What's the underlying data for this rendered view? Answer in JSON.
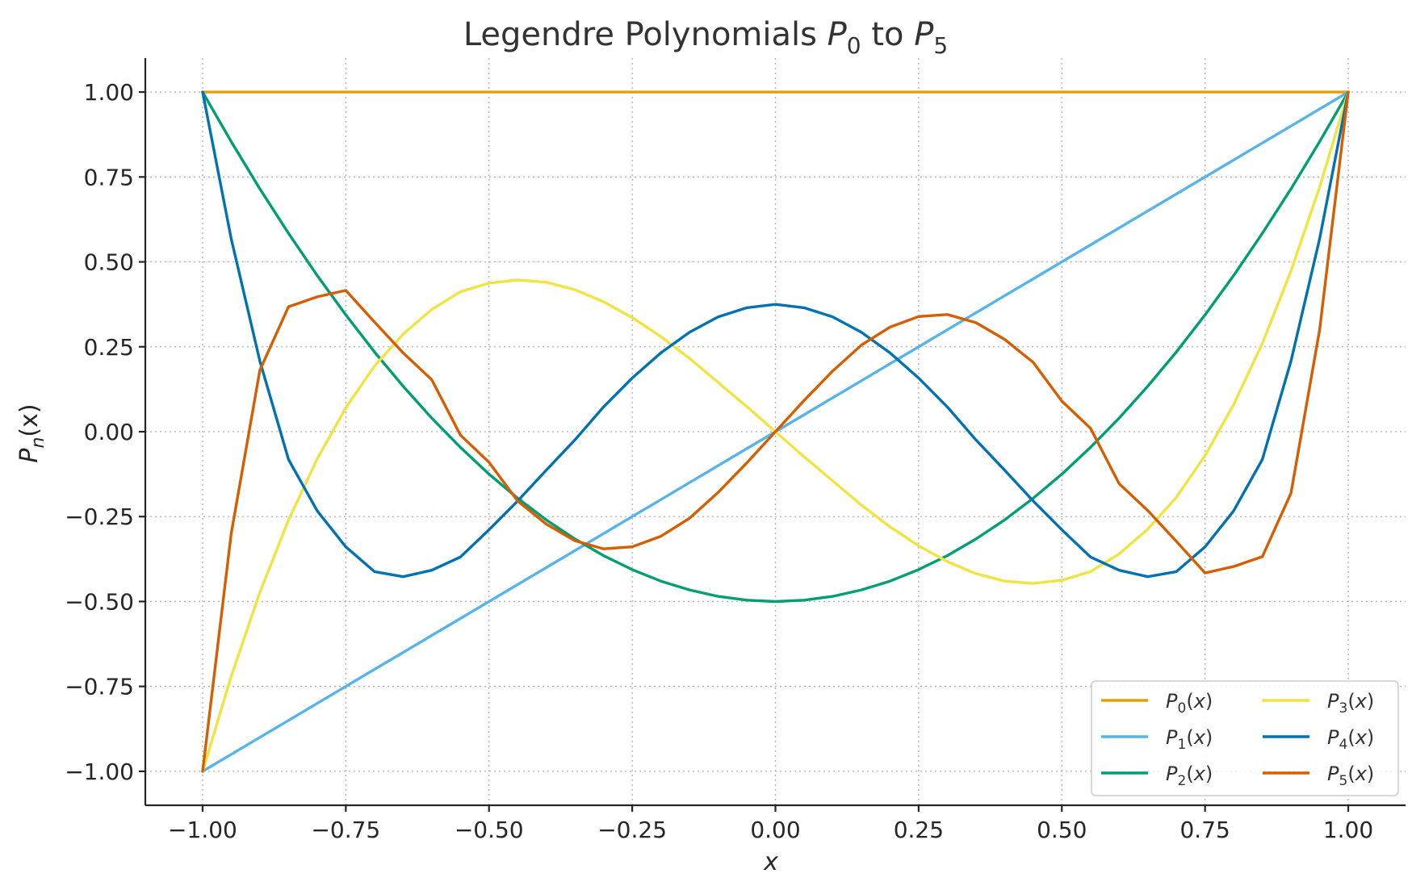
{
  "chart_data": {
    "type": "line",
    "title": "Legendre Polynomials P₀ to P₅",
    "title_parts": {
      "prefix": "Legendre Polynomials ",
      "p": "P",
      "sub0": "0",
      "mid": " to ",
      "sub5": "5"
    },
    "xlabel": "x",
    "ylabel": "Pₙ(x)",
    "xlim": [
      -1.1,
      1.1
    ],
    "ylim": [
      -1.1,
      1.1
    ],
    "x_ticks": [
      -1.0,
      -0.75,
      -0.5,
      -0.25,
      0.0,
      0.25,
      0.5,
      0.75,
      1.0
    ],
    "x_tick_labels": [
      "−1.00",
      "−0.75",
      "−0.50",
      "−0.25",
      "0.00",
      "0.25",
      "0.50",
      "0.75",
      "1.00"
    ],
    "y_ticks": [
      1.0,
      0.75,
      0.5,
      0.25,
      0.0,
      -0.25,
      -0.5,
      -0.75,
      -1.0
    ],
    "y_tick_labels": [
      "1.00",
      "0.75",
      "0.50",
      "0.25",
      "0.00",
      "−0.25",
      "−0.50",
      "−0.75",
      "−1.00"
    ],
    "grid": true,
    "legend_position": "bottom-right",
    "legend_columns": 2,
    "x": [
      -1.0,
      -0.95,
      -0.9,
      -0.85,
      -0.8,
      -0.75,
      -0.7,
      -0.65,
      -0.6,
      -0.55,
      -0.5,
      -0.45,
      -0.4,
      -0.35,
      -0.3,
      -0.25,
      -0.2,
      -0.15,
      -0.1,
      -0.05,
      0.0,
      0.05,
      0.1,
      0.15,
      0.2,
      0.25,
      0.3,
      0.35,
      0.4,
      0.45,
      0.5,
      0.55,
      0.6,
      0.65,
      0.7,
      0.75,
      0.8,
      0.85,
      0.9,
      0.95,
      1.0
    ],
    "series": [
      {
        "name": "P₀(x)",
        "n": "0",
        "color": "#E69F00",
        "values": [
          1,
          1,
          1,
          1,
          1,
          1,
          1,
          1,
          1,
          1,
          1,
          1,
          1,
          1,
          1,
          1,
          1,
          1,
          1,
          1,
          1,
          1,
          1,
          1,
          1,
          1,
          1,
          1,
          1,
          1,
          1,
          1,
          1,
          1,
          1,
          1,
          1,
          1,
          1,
          1,
          1
        ]
      },
      {
        "name": "P₁(x)",
        "n": "1",
        "color": "#56B4E9",
        "values": [
          -1.0,
          -0.95,
          -0.9,
          -0.85,
          -0.8,
          -0.75,
          -0.7,
          -0.65,
          -0.6,
          -0.55,
          -0.5,
          -0.45,
          -0.4,
          -0.35,
          -0.3,
          -0.25,
          -0.2,
          -0.15,
          -0.1,
          -0.05,
          0.0,
          0.05,
          0.1,
          0.15,
          0.2,
          0.25,
          0.3,
          0.35,
          0.4,
          0.45,
          0.5,
          0.55,
          0.6,
          0.65,
          0.7,
          0.75,
          0.8,
          0.85,
          0.9,
          0.95,
          1.0
        ]
      },
      {
        "name": "P₂(x)",
        "n": "2",
        "color": "#009E73",
        "values": [
          1.0,
          0.854,
          0.715,
          0.584,
          0.46,
          0.344,
          0.235,
          0.134,
          0.04,
          -0.046,
          -0.125,
          -0.196,
          -0.26,
          -0.316,
          -0.365,
          -0.406,
          -0.44,
          -0.466,
          -0.485,
          -0.496,
          -0.5,
          -0.496,
          -0.485,
          -0.466,
          -0.44,
          -0.406,
          -0.365,
          -0.316,
          -0.26,
          -0.196,
          -0.125,
          -0.046,
          0.04,
          0.134,
          0.235,
          0.344,
          0.46,
          0.584,
          0.715,
          0.854,
          1.0
        ]
      },
      {
        "name": "P₃(x)",
        "n": "3",
        "color": "#F0E442",
        "values": [
          -1.0,
          -0.72,
          -0.473,
          -0.26,
          -0.08,
          0.07,
          0.193,
          0.287,
          0.36,
          0.412,
          0.4375,
          0.447,
          0.44,
          0.418,
          0.3825,
          0.336,
          0.28,
          0.216,
          0.145,
          0.074,
          0.0,
          -0.074,
          -0.145,
          -0.216,
          -0.28,
          -0.336,
          -0.3825,
          -0.418,
          -0.44,
          -0.447,
          -0.4375,
          -0.412,
          -0.36,
          -0.287,
          -0.193,
          -0.07,
          0.08,
          0.26,
          0.473,
          0.72,
          1.0
        ]
      },
      {
        "name": "P₄(x)",
        "n": "4",
        "color": "#0072B2",
        "values": [
          1.0,
          0.568,
          0.208,
          -0.082,
          -0.233,
          -0.339,
          -0.412,
          -0.427,
          -0.408,
          -0.369,
          -0.289,
          -0.204,
          -0.113,
          -0.024,
          0.073,
          0.158,
          0.232,
          0.293,
          0.338,
          0.365,
          0.375,
          0.365,
          0.338,
          0.293,
          0.232,
          0.158,
          0.073,
          -0.024,
          -0.113,
          -0.204,
          -0.289,
          -0.369,
          -0.408,
          -0.427,
          -0.412,
          -0.339,
          -0.233,
          -0.082,
          0.208,
          0.568,
          1.0
        ]
      },
      {
        "name": "P₅(x)",
        "n": "5",
        "color": "#D55E00",
        "values": [
          -1.0,
          -0.3,
          0.181,
          0.368,
          0.397,
          0.416,
          0.323,
          0.232,
          0.153,
          -0.01,
          -0.09,
          -0.204,
          -0.272,
          -0.321,
          -0.345,
          -0.339,
          -0.308,
          -0.255,
          -0.179,
          -0.092,
          0.0,
          0.092,
          0.179,
          0.255,
          0.308,
          0.339,
          0.345,
          0.321,
          0.272,
          0.204,
          0.09,
          0.01,
          -0.153,
          -0.232,
          -0.323,
          -0.416,
          -0.397,
          -0.368,
          -0.181,
          0.3,
          1.0
        ]
      }
    ]
  }
}
